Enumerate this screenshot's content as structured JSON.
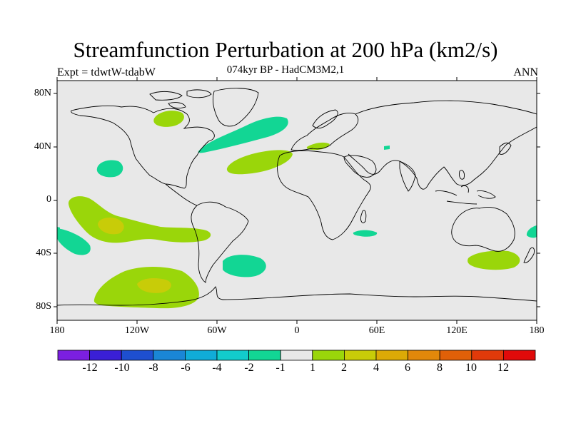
{
  "title": "Streamfunction Perturbation at 200 hPa (km2/s)",
  "subtitle": "074kyr BP - HadCM3M2,1",
  "left_label": "Expt = tdwtW-tdabW",
  "right_label": "ANN",
  "lat_ticks": [
    "80N",
    "40N",
    "0",
    "40S",
    "80S"
  ],
  "lon_ticks": [
    "180",
    "120W",
    "60W",
    "0",
    "60E",
    "120E",
    "180"
  ],
  "colorbar": {
    "colors": [
      "#7b1fe0",
      "#3a1fd6",
      "#1e4fd0",
      "#1a86d6",
      "#10acd8",
      "#12cccc",
      "#12d694",
      "#e8e8e8",
      "#9ad60a",
      "#c8cc08",
      "#dcaa06",
      "#e2880a",
      "#e06008",
      "#e03a0a",
      "#e00a0a"
    ],
    "tick_labels": [
      "-12",
      "-10",
      "-8",
      "-6",
      "-4",
      "-2",
      "-1",
      "1",
      "2",
      "4",
      "6",
      "8",
      "10",
      "12"
    ]
  },
  "colors": {
    "background": "#e8e8e8",
    "positive_1_2": "#9ad60a",
    "positive_2_4": "#c8cc08",
    "negative_1_2": "#12d694",
    "coastline": "#000000"
  }
}
